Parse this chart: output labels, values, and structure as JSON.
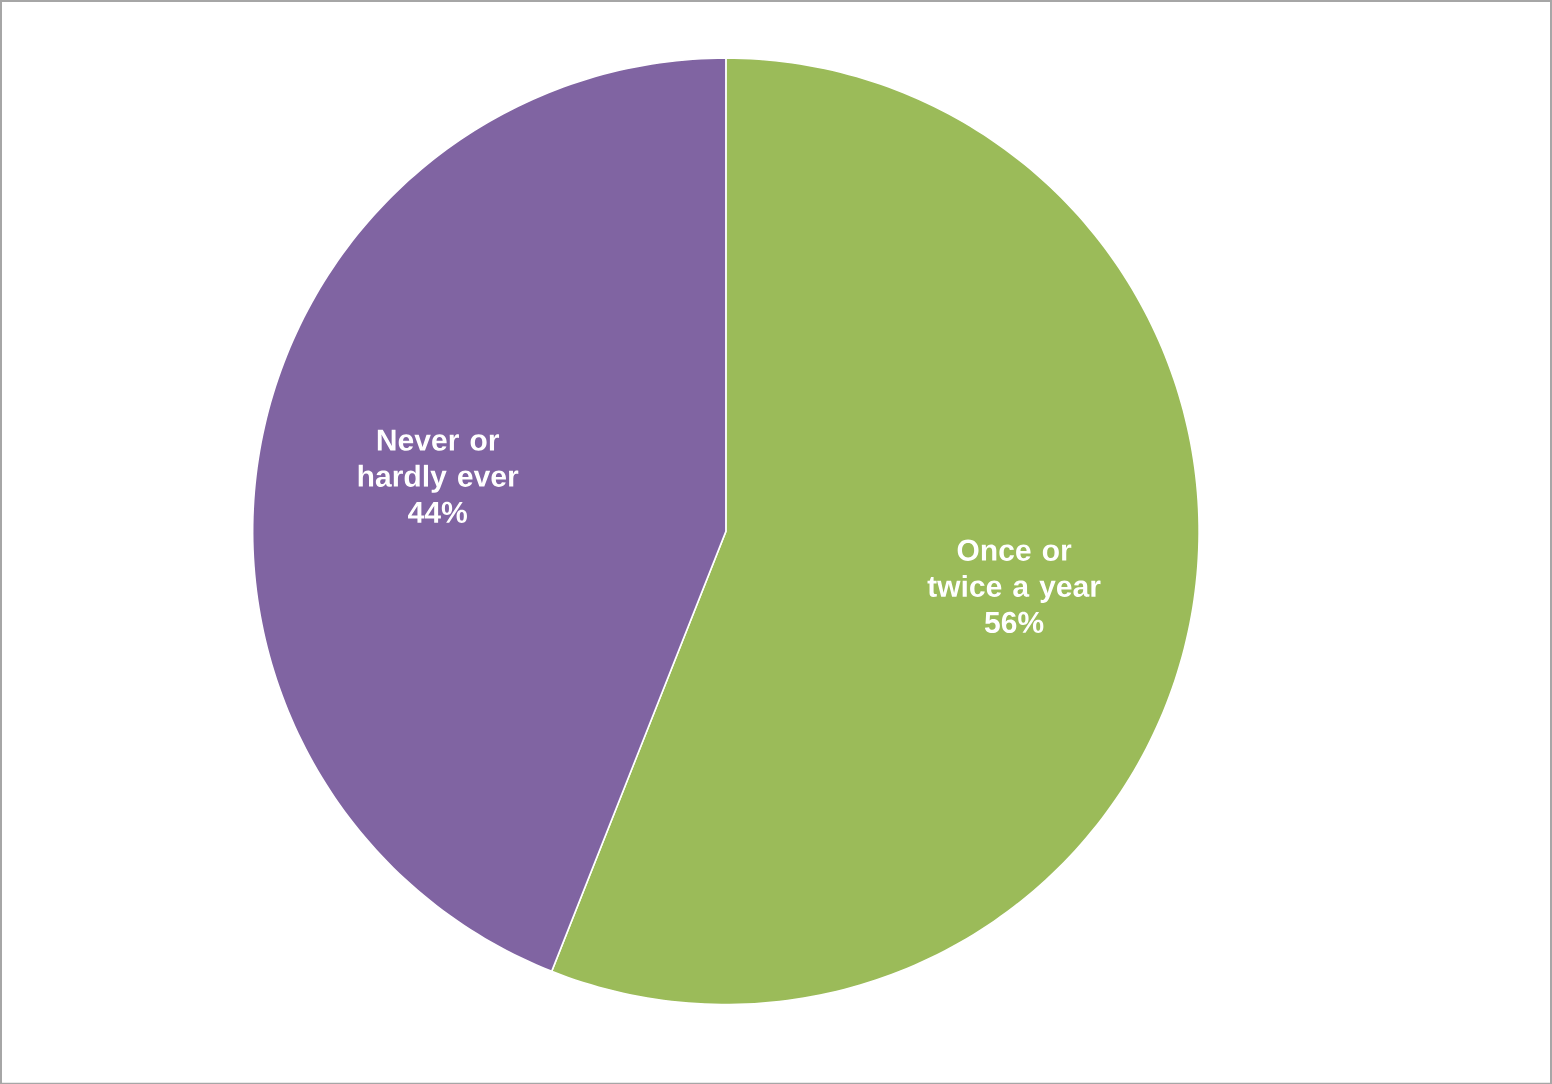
{
  "chart_data": {
    "type": "pie",
    "categories": [
      "Once or twice a year",
      "Never or hardly ever"
    ],
    "values": [
      56,
      44
    ],
    "colors": [
      "#9bbb59",
      "#8064a2"
    ],
    "value_labels": [
      "56%",
      "44%"
    ]
  }
}
